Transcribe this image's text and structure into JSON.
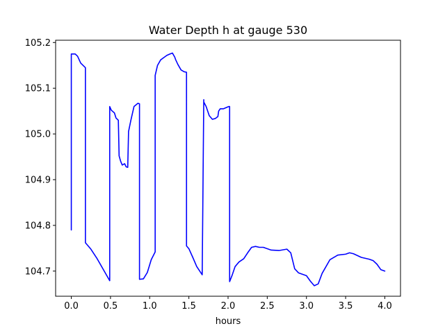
{
  "chart_data": {
    "type": "line",
    "title": "Water Depth h at gauge 530",
    "xlabel": "hours",
    "ylabel": "",
    "xlim": [
      -0.2,
      4.2
    ],
    "ylim": [
      104.645,
      105.205
    ],
    "xticks": [
      0.0,
      0.5,
      1.0,
      1.5,
      2.0,
      2.5,
      3.0,
      3.5,
      4.0
    ],
    "xtick_labels": [
      "0.0",
      "0.5",
      "1.0",
      "1.5",
      "2.0",
      "2.5",
      "3.0",
      "3.5",
      "4.0"
    ],
    "yticks": [
      104.7,
      104.8,
      104.9,
      105.0,
      105.1,
      105.2
    ],
    "ytick_labels": [
      "104.7",
      "104.8",
      "104.9",
      "105.0",
      "105.1",
      "105.2"
    ],
    "grid": false,
    "series": [
      {
        "color": "#0000ff",
        "x": [
          0.0,
          0.0,
          0.05,
          0.08,
          0.12,
          0.18,
          0.18,
          0.25,
          0.33,
          0.42,
          0.49,
          0.49,
          0.51,
          0.55,
          0.57,
          0.6,
          0.61,
          0.63,
          0.65,
          0.68,
          0.7,
          0.72,
          0.73,
          0.73,
          0.76,
          0.8,
          0.85,
          0.87,
          0.87,
          0.92,
          0.97,
          1.02,
          1.07,
          1.07,
          1.1,
          1.14,
          1.18,
          1.22,
          1.26,
          1.29,
          1.32,
          1.33,
          1.36,
          1.4,
          1.44,
          1.47,
          1.47,
          1.5,
          1.55,
          1.6,
          1.67,
          1.69,
          1.69,
          1.72,
          1.76,
          1.8,
          1.84,
          1.87,
          1.88,
          1.9,
          1.94,
          1.98,
          2.01,
          2.02,
          2.02,
          2.05,
          2.09,
          2.14,
          2.2,
          2.25,
          2.3,
          2.35,
          2.4,
          2.45,
          2.55,
          2.65,
          2.75,
          2.8,
          2.85,
          2.9,
          3.0,
          3.05,
          3.1,
          3.15,
          3.2,
          3.3,
          3.4,
          3.5,
          3.55,
          3.6,
          3.7,
          3.8,
          3.85,
          3.9,
          3.95,
          4.0
        ],
        "y": [
          104.79,
          105.175,
          105.175,
          105.17,
          105.155,
          105.145,
          104.762,
          104.748,
          104.727,
          104.7,
          104.679,
          105.06,
          105.052,
          105.046,
          105.035,
          105.03,
          104.952,
          104.94,
          104.932,
          104.935,
          104.928,
          104.927,
          105.002,
          105.005,
          105.03,
          105.06,
          105.067,
          105.066,
          104.682,
          104.683,
          104.697,
          104.725,
          104.742,
          105.128,
          105.15,
          105.162,
          105.167,
          105.172,
          105.175,
          105.177,
          105.168,
          105.163,
          105.152,
          105.14,
          105.136,
          105.135,
          104.755,
          104.749,
          104.73,
          104.71,
          104.692,
          105.075,
          105.07,
          105.06,
          105.04,
          105.032,
          105.034,
          105.038,
          105.05,
          105.055,
          105.055,
          105.058,
          105.06,
          105.06,
          104.677,
          104.69,
          104.71,
          104.72,
          104.727,
          104.74,
          104.752,
          104.754,
          104.752,
          104.752,
          104.746,
          104.745,
          104.748,
          104.74,
          104.705,
          104.696,
          104.69,
          104.678,
          104.668,
          104.672,
          104.695,
          104.725,
          104.735,
          104.737,
          104.74,
          104.738,
          104.73,
          104.726,
          104.723,
          104.715,
          104.703,
          104.7
        ]
      }
    ]
  }
}
